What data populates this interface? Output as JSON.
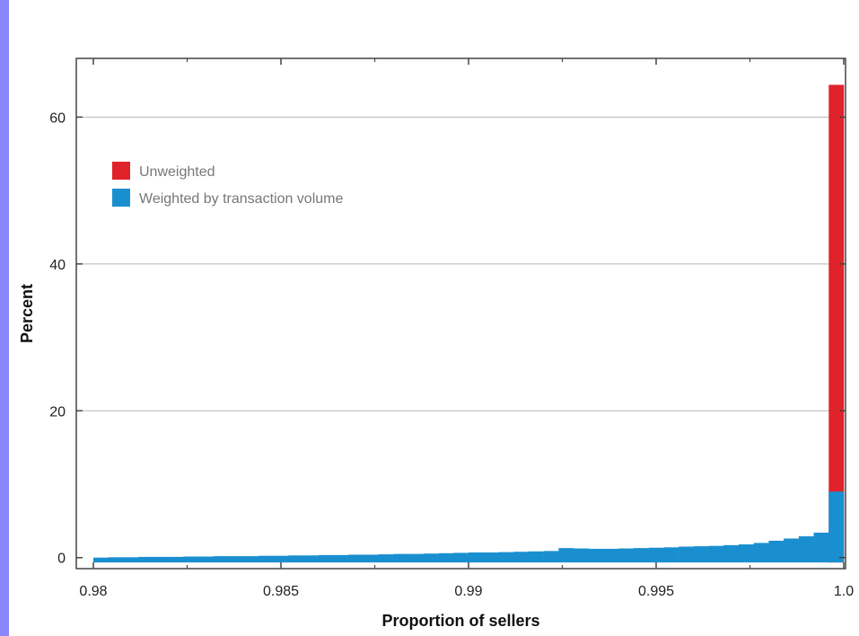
{
  "chart_data": {
    "type": "bar",
    "xlabel": "Proportion of sellers",
    "ylabel": "Percent",
    "xlim": [
      0.98,
      1.0
    ],
    "ylim": [
      -1.5,
      68
    ],
    "x_ticks": [
      0.98,
      0.985,
      0.99,
      0.995,
      1.0
    ],
    "x_tick_labels": [
      "0.98",
      "0.985",
      "0.99",
      "0.995",
      "1.0"
    ],
    "y_ticks": [
      0,
      20,
      40,
      60
    ],
    "y_tick_labels": [
      "0",
      "20",
      "40",
      "60"
    ],
    "grid": "horizontal",
    "legend_position": "top-left",
    "bin_width": 0.0004,
    "series": [
      {
        "name": "Unweighted",
        "color": "#e0232b",
        "x": [
          0.9996
        ],
        "values": [
          64.4
        ]
      },
      {
        "name": "Weighted by transaction volume",
        "color": "#1a8fd0",
        "x": [
          0.98,
          0.9804,
          0.9808,
          0.9812,
          0.9816,
          0.982,
          0.9824,
          0.9828,
          0.9832,
          0.9836,
          0.984,
          0.9844,
          0.9848,
          0.9852,
          0.9856,
          0.986,
          0.9864,
          0.9868,
          0.9872,
          0.9876,
          0.988,
          0.9884,
          0.9888,
          0.9892,
          0.9896,
          0.99,
          0.9904,
          0.9908,
          0.9912,
          0.9916,
          0.992,
          0.9924,
          0.9928,
          0.9932,
          0.9936,
          0.994,
          0.9944,
          0.9948,
          0.9952,
          0.9956,
          0.996,
          0.9964,
          0.9968,
          0.9972,
          0.9976,
          0.998,
          0.9984,
          0.9988,
          0.9992,
          0.9996
        ],
        "values": [
          0.0,
          0.05,
          0.05,
          0.1,
          0.1,
          0.1,
          0.15,
          0.15,
          0.2,
          0.2,
          0.2,
          0.25,
          0.25,
          0.3,
          0.3,
          0.35,
          0.35,
          0.4,
          0.4,
          0.45,
          0.5,
          0.5,
          0.55,
          0.6,
          0.65,
          0.7,
          0.7,
          0.75,
          0.8,
          0.85,
          0.9,
          1.3,
          1.25,
          1.2,
          1.2,
          1.25,
          1.3,
          1.35,
          1.4,
          1.5,
          1.55,
          1.6,
          1.7,
          1.8,
          2.0,
          2.3,
          2.6,
          2.9,
          3.4,
          9.0
        ]
      }
    ]
  }
}
